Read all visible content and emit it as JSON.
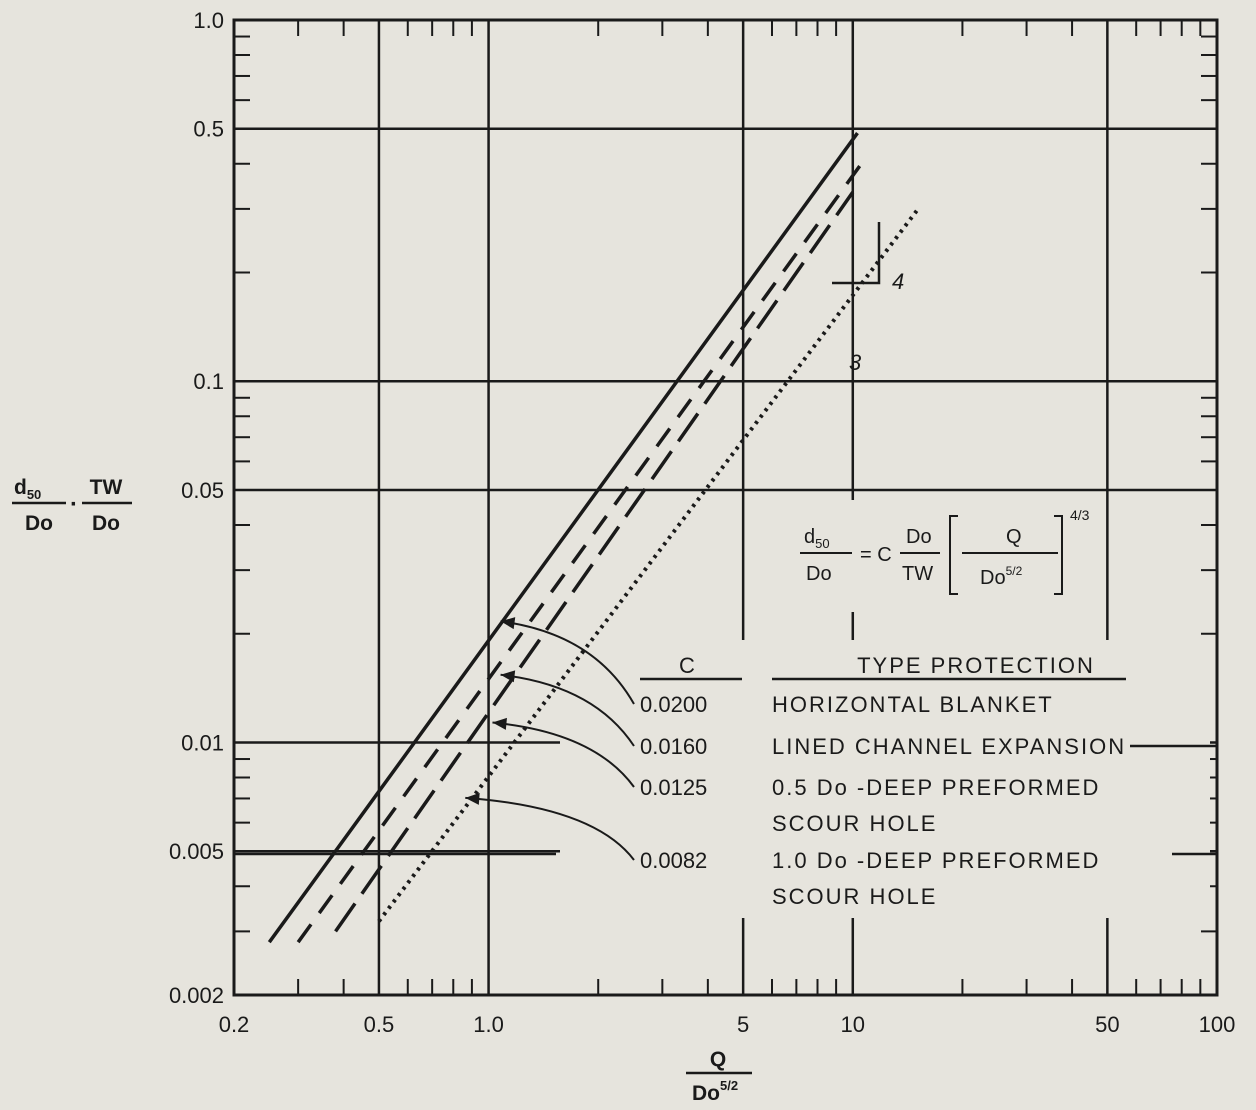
{
  "chart_data": {
    "type": "line",
    "xscale": "log",
    "yscale": "log",
    "xlim": [
      0.2,
      100
    ],
    "ylim": [
      0.002,
      1.0
    ],
    "grid": true,
    "x_ticklabels": [
      {
        "value": 0.2,
        "label": "0.2"
      },
      {
        "value": 0.5,
        "label": "0.5"
      },
      {
        "value": 1,
        "label": "1.0"
      },
      {
        "value": 5,
        "label": "5"
      },
      {
        "value": 10,
        "label": "10"
      },
      {
        "value": 50,
        "label": "50"
      },
      {
        "value": 100,
        "label": "100"
      }
    ],
    "y_ticklabels": [
      {
        "value": 0.002,
        "label": "0.002"
      },
      {
        "value": 0.005,
        "label": "0.005"
      },
      {
        "value": 0.01,
        "label": "0.01"
      },
      {
        "value": 0.05,
        "label": "0.05"
      },
      {
        "value": 0.1,
        "label": "0.1"
      },
      {
        "value": 0.5,
        "label": "0.5"
      },
      {
        "value": 1.0,
        "label": "1.0"
      }
    ],
    "xlabel": {
      "numerator": "Q",
      "denominator": "Do",
      "denominator_exp": "5/2"
    },
    "ylabel": {
      "left_num": "d",
      "left_sub": "50",
      "left_den": "Do",
      "dot": "·",
      "right_num": "TW",
      "right_den": "Do"
    },
    "equation": {
      "lhs_num": "d",
      "lhs_sub": "50",
      "lhs_den": "Do",
      "equals": "= C",
      "mid_num": "Do",
      "mid_den": "TW",
      "br_num": "Q",
      "br_den": "Do",
      "br_den_exp": "5/2",
      "power": "4/3"
    },
    "slope_triangle": {
      "rise": "4",
      "run": "3"
    },
    "legend_headers": {
      "c": "C",
      "type": "TYPE PROTECTION"
    },
    "series": [
      {
        "c": "0.0200",
        "label_lines": [
          "HORIZONTAL BLANKET"
        ],
        "style": "solid",
        "x": [
          0.25,
          10.3
        ],
        "y": [
          0.0028,
          0.4865
        ],
        "arrow_target": [
          1.0,
          0.0225
        ]
      },
      {
        "c": "0.0160",
        "label_lines": [
          "LINED CHANNEL EXPANSION"
        ],
        "style": "dashed",
        "x": [
          0.3,
          11.0
        ],
        "y": [
          0.0028,
          0.4236
        ],
        "arrow_target": [
          1.0,
          0.016
        ]
      },
      {
        "c": "0.0125",
        "label_lines": [
          "0.5 Do -DEEP PREFORMED",
          "SCOUR HOLE"
        ],
        "style": "longdash",
        "x": [
          0.38,
          10.0
        ],
        "y": [
          0.003,
          0.3338
        ],
        "arrow_target": [
          0.95,
          0.0118
        ]
      },
      {
        "c": "0.0082",
        "label_lines": [
          "1.0 Do -DEEP PREFORMED",
          "SCOUR HOLE"
        ],
        "style": "dotted",
        "x": [
          0.5,
          15.0
        ],
        "y": [
          0.0032,
          0.2969
        ],
        "arrow_target": [
          0.8,
          0.0073
        ]
      }
    ]
  }
}
